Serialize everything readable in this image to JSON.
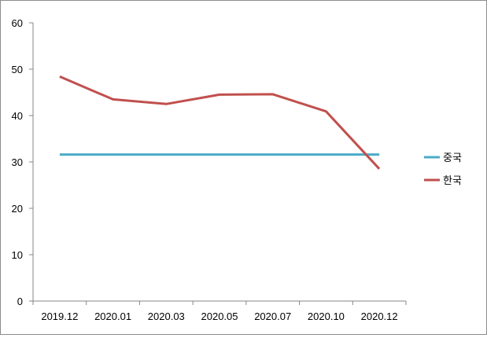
{
  "chart_data": {
    "type": "line",
    "categories": [
      "2019.12",
      "2020.01",
      "2020.03",
      "2020.05",
      "2020.07",
      "2020.10",
      "2020.12"
    ],
    "series": [
      {
        "name": "중국",
        "values": [
          31.6,
          31.6,
          31.6,
          31.6,
          31.6,
          31.6,
          31.6
        ],
        "color": "#4bacc6"
      },
      {
        "name": "한국",
        "values": [
          48.4,
          43.5,
          42.5,
          44.5,
          44.6,
          40.9,
          28.5
        ],
        "color": "#c0504d"
      }
    ],
    "ylim": [
      0,
      60
    ],
    "yticks": [
      0,
      10,
      20,
      30,
      40,
      50,
      60
    ],
    "grid": false,
    "legend": "right"
  }
}
